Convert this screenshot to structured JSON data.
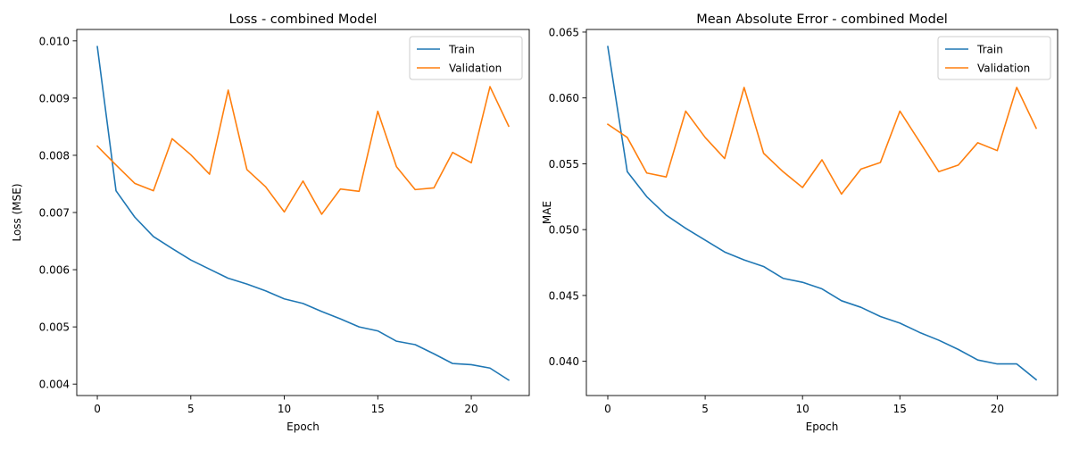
{
  "chart_data": [
    {
      "type": "line",
      "title": "Loss - combined Model",
      "xlabel": "Epoch",
      "ylabel": "Loss (MSE)",
      "xlim": [
        -1.1,
        23.1
      ],
      "ylim": [
        0.0038,
        0.0102
      ],
      "xticks": [
        0,
        5,
        10,
        15,
        20
      ],
      "yticks": [
        0.004,
        0.005,
        0.006,
        0.007,
        0.008,
        0.009,
        0.01
      ],
      "ytick_labels": [
        "0.004",
        "0.005",
        "0.006",
        "0.007",
        "0.008",
        "0.009",
        "0.010"
      ],
      "grid": false,
      "legend": "upper right",
      "x": [
        0,
        1,
        2,
        3,
        4,
        5,
        6,
        7,
        8,
        9,
        10,
        11,
        12,
        13,
        14,
        15,
        16,
        17,
        18,
        19,
        20,
        21,
        22
      ],
      "series": [
        {
          "name": "Train",
          "color": "#1f77b4",
          "values": [
            0.0099,
            0.00738,
            0.00692,
            0.00658,
            0.00637,
            0.00617,
            0.00601,
            0.00585,
            0.00575,
            0.00563,
            0.00549,
            0.00541,
            0.00527,
            0.00514,
            0.005,
            0.00493,
            0.00475,
            0.00469,
            0.00453,
            0.00436,
            0.00434,
            0.00428,
            0.00407
          ]
        },
        {
          "name": "Validation",
          "color": "#ff7f0e",
          "values": [
            0.00816,
            0.00783,
            0.00751,
            0.00738,
            0.00829,
            0.00801,
            0.00767,
            0.00914,
            0.00775,
            0.00745,
            0.00701,
            0.00755,
            0.00697,
            0.00741,
            0.00737,
            0.00877,
            0.0078,
            0.0074,
            0.00743,
            0.00805,
            0.00787,
            0.0092,
            0.00851
          ]
        }
      ]
    },
    {
      "type": "line",
      "title": "Mean Absolute Error - combined Model",
      "xlabel": "Epoch",
      "ylabel": "MAE",
      "xlim": [
        -1.1,
        23.1
      ],
      "ylim": [
        0.0374,
        0.0652
      ],
      "xticks": [
        0,
        5,
        10,
        15,
        20
      ],
      "yticks": [
        0.04,
        0.045,
        0.05,
        0.055,
        0.06,
        0.065
      ],
      "ytick_labels": [
        "0.040",
        "0.045",
        "0.050",
        "0.055",
        "0.060",
        "0.065"
      ],
      "grid": false,
      "legend": "upper right",
      "x": [
        0,
        1,
        2,
        3,
        4,
        5,
        6,
        7,
        8,
        9,
        10,
        11,
        12,
        13,
        14,
        15,
        16,
        17,
        18,
        19,
        20,
        21,
        22
      ],
      "series": [
        {
          "name": "Train",
          "color": "#1f77b4",
          "values": [
            0.0639,
            0.0544,
            0.0525,
            0.0511,
            0.0501,
            0.0492,
            0.0483,
            0.0477,
            0.0472,
            0.0463,
            0.046,
            0.0455,
            0.0446,
            0.0441,
            0.0434,
            0.0429,
            0.0422,
            0.0416,
            0.0409,
            0.0401,
            0.0398,
            0.0398,
            0.0386
          ]
        },
        {
          "name": "Validation",
          "color": "#ff7f0e",
          "values": [
            0.058,
            0.057,
            0.0543,
            0.054,
            0.059,
            0.057,
            0.0554,
            0.0608,
            0.0558,
            0.0544,
            0.0532,
            0.0553,
            0.0527,
            0.0546,
            0.0551,
            0.059,
            0.0567,
            0.0544,
            0.0549,
            0.0566,
            0.056,
            0.0608,
            0.0577
          ]
        }
      ]
    }
  ]
}
